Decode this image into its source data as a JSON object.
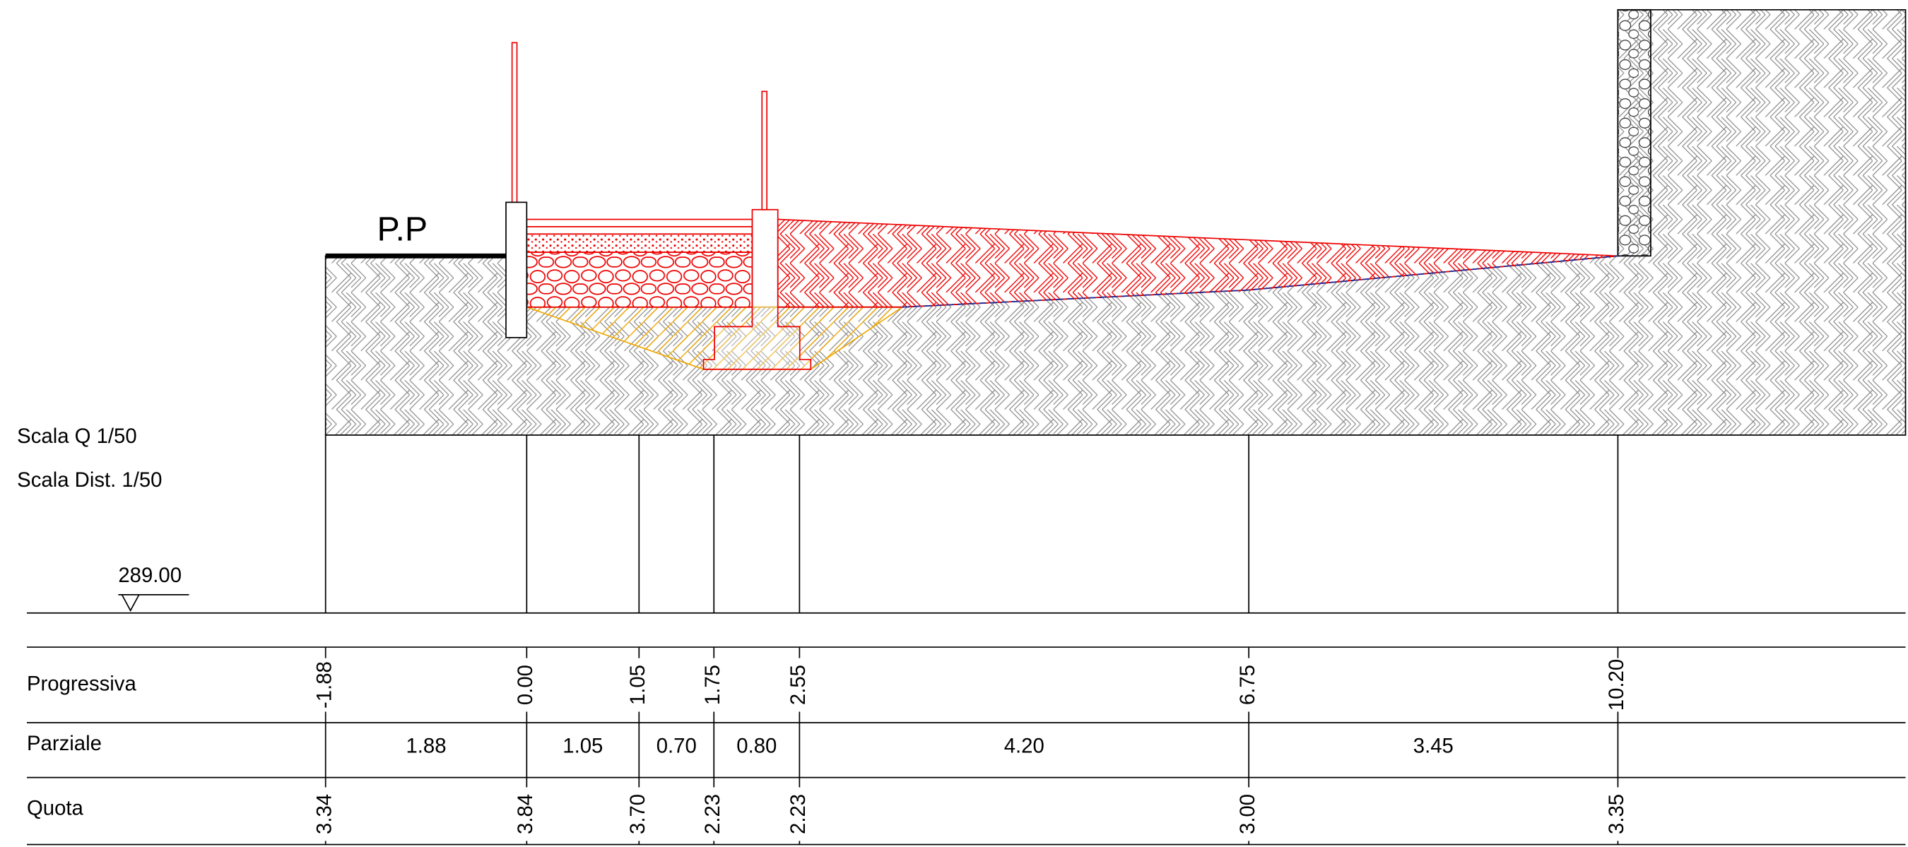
{
  "drawing": {
    "label": "P.P",
    "scale_q": "Scala Q 1/50",
    "scale_dist": "Scala Dist. 1/50",
    "datum": "289.00"
  },
  "table": {
    "row_labels": [
      "Progressiva",
      "Parziale",
      "Quota"
    ],
    "progressiva": [
      "-1.88",
      "0.00",
      "1.05",
      "1.75",
      "2.55",
      "6.75",
      "10.20"
    ],
    "parziale": [
      "1.88",
      "1.05",
      "0.70",
      "0.80",
      "4.20",
      "3.45"
    ],
    "quota": [
      "3.34",
      "3.84",
      "3.70",
      "2.23",
      "2.23",
      "3.00",
      "3.35"
    ]
  }
}
